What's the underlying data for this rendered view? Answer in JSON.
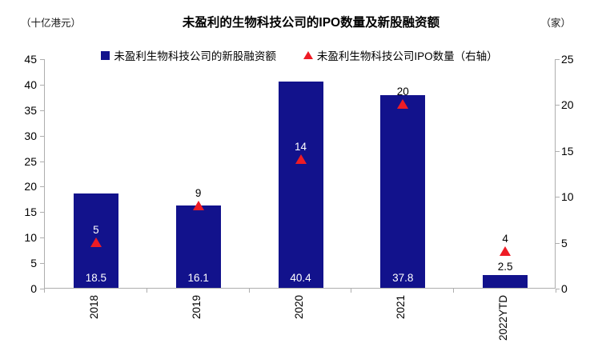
{
  "header": {
    "left_unit": "（十亿港元）",
    "title": "未盈利的生物科技公司的IPO数量及新股融资额",
    "right_unit": "（家）"
  },
  "legend": [
    {
      "marker": "square-icon",
      "color": "#12128C",
      "label": "未盈利生物科技公司的新股融资额"
    },
    {
      "marker": "triangle-icon",
      "color": "#EE1C25",
      "label": "未盈利生物科技公司IPO数量（右轴）"
    }
  ],
  "colors": {
    "bar": "#12128C",
    "triangle": "#EE1C25",
    "axis_line": "#AEAEAE",
    "bar_label_inside": "#FFFFFF",
    "label_outside": "#000000"
  },
  "chart_data": {
    "type": "bar",
    "title": "未盈利的生物科技公司的IPO数量及新股融资额",
    "categories": [
      "2018",
      "2019",
      "2020",
      "2021",
      "2022YTD"
    ],
    "series": [
      {
        "name": "未盈利生物科技公司的新股融资额",
        "type": "bar",
        "axis": "left",
        "unit": "十亿港元",
        "color": "#12128C",
        "values": [
          18.5,
          16.1,
          40.4,
          37.8,
          2.5
        ],
        "data_labels": [
          "18.5",
          "16.1",
          "40.4",
          "37.8",
          "2.5"
        ]
      },
      {
        "name": "未盈利生物科技公司IPO数量（右轴）",
        "type": "scatter",
        "marker": "triangle",
        "axis": "right",
        "unit": "家",
        "color": "#EE1C25",
        "values": [
          5,
          9,
          14,
          20,
          4
        ],
        "data_labels": [
          "5",
          "9",
          "14",
          "20",
          "4"
        ]
      }
    ],
    "left_axis": {
      "label": "（十亿港元）",
      "min": 0,
      "max": 45,
      "step": 5,
      "ticks": [
        0,
        5,
        10,
        15,
        20,
        25,
        30,
        35,
        40,
        45
      ]
    },
    "right_axis": {
      "label": "（家）",
      "min": 0,
      "max": 25,
      "step": 5,
      "ticks": [
        0,
        5,
        10,
        15,
        20,
        25
      ]
    },
    "grid": false,
    "legend_position": "top"
  }
}
